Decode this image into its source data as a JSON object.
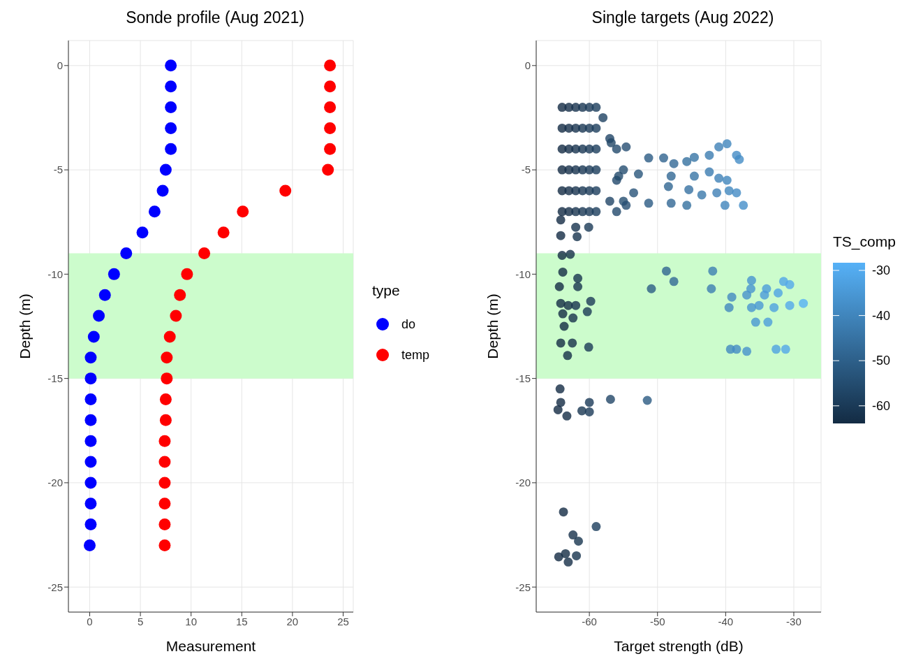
{
  "chart_data": [
    {
      "type": "scatter",
      "title": "Sonde profile (Aug 2021)",
      "xlabel": "Measurement",
      "ylabel": "Depth (m)",
      "legend_title": "type",
      "legend": "right",
      "grid": true,
      "marker": "circle",
      "xlim": [
        -2.1,
        26
      ],
      "xticks": [
        0,
        5,
        10,
        15,
        20,
        25
      ],
      "ylim": [
        -26.2,
        1.2
      ],
      "yticks": [
        -25,
        -20,
        -15,
        -10,
        -5,
        0
      ],
      "bands": [
        {
          "axis": "y",
          "from": -15,
          "to": -9,
          "color": "#ccfccc"
        }
      ],
      "series": [
        {
          "name": "do",
          "color": "#0000ff",
          "x": [
            8.0,
            8.0,
            8.0,
            8.0,
            8.0,
            7.5,
            7.2,
            6.4,
            5.2,
            3.6,
            2.4,
            1.5,
            0.9,
            0.4,
            0.1,
            0.1,
            0.1,
            0.1,
            0.1,
            0.1,
            0.1,
            0.1,
            0.1,
            0.0
          ],
          "values": [
            0,
            -1,
            -2,
            -3,
            -4,
            -5,
            -6,
            -7,
            -8,
            -9,
            -10,
            -11,
            -12,
            -13,
            -14,
            -15,
            -16,
            -17,
            -18,
            -19,
            -20,
            -21,
            -22,
            -23
          ]
        },
        {
          "name": "temp",
          "color": "#ff0000",
          "x": [
            23.7,
            23.7,
            23.7,
            23.7,
            23.7,
            23.5,
            19.3,
            15.1,
            13.2,
            11.3,
            9.6,
            8.9,
            8.5,
            7.9,
            7.6,
            7.6,
            7.5,
            7.5,
            7.4,
            7.4,
            7.4,
            7.4,
            7.4,
            7.4
          ],
          "values": [
            0,
            -1,
            -2,
            -3,
            -4,
            -5,
            -6,
            -7,
            -8,
            -9,
            -10,
            -11,
            -12,
            -13,
            -14,
            -15,
            -16,
            -17,
            -18,
            -19,
            -20,
            -21,
            -22,
            -23
          ]
        }
      ]
    },
    {
      "type": "scatter",
      "title": "Single targets (Aug 2022)",
      "xlabel": "Target strength (dB)",
      "ylabel": "Depth (m)",
      "clabel": "TS_comp",
      "clim": [
        -63.9,
        -28.3
      ],
      "cticks": [
        -60,
        -50,
        -40,
        -30
      ],
      "grid": true,
      "marker": "circle",
      "xlim": [
        -67.8,
        -26
      ],
      "xticks": [
        -60,
        -50,
        -40,
        -30
      ],
      "ylim": [
        -26.2,
        1.2
      ],
      "yticks": [
        -25,
        -20,
        -15,
        -10,
        -5,
        0
      ],
      "bands": [
        {
          "axis": "y",
          "from": -15,
          "to": -9,
          "color": "#ccfccc"
        }
      ],
      "series": [
        {
          "x": [
            -64,
            -63,
            -62,
            -61,
            -60,
            -59,
            -64,
            -63,
            -62,
            -61,
            -60,
            -59,
            -64,
            -63,
            -62,
            -61,
            -60,
            -59,
            -64,
            -63,
            -62,
            -61,
            -60,
            -59,
            -64,
            -63,
            -62,
            -61,
            -60,
            -59,
            -64,
            -63,
            -62,
            -61,
            -60,
            -59,
            -58,
            -57,
            -56,
            -55,
            -56,
            -55,
            -57,
            -56,
            -51.3,
            -49.1,
            -47.6,
            -45.7,
            -44.6,
            -42.4,
            -41.0,
            -39.8,
            -38.4,
            -38.0,
            -48.0,
            -44.6,
            -42.4,
            -41.0,
            -39.8,
            -48.4,
            -45.4,
            -43.5,
            -41.3,
            -39.5,
            -38.4,
            -51.3,
            -48.0,
            -45.7,
            -40.1,
            -37.4,
            -54.6,
            -56.8,
            -52.8,
            -53.5,
            -54.6,
            -55.7,
            -64.2,
            -62.0,
            -60.1,
            -64.2,
            -61.8,
            -64.0,
            -62.8,
            -63.9,
            -64.4,
            -61.7,
            -61.7,
            -64.2,
            -63.1,
            -62.0,
            -59.8,
            -60.3,
            -63.9,
            -62.4,
            -63.7,
            -64.2,
            -62.5,
            -60.1,
            -63.2,
            -50.9,
            -48.7,
            -47.6,
            -41.9,
            -42.1,
            -36.2,
            -36.3,
            -34.0,
            -31.5,
            -30.6,
            -32.3,
            -39.1,
            -36.9,
            -34.3,
            -39.5,
            -36.2,
            -35.1,
            -32.9,
            -30.6,
            -28.6,
            -35.6,
            -33.8,
            -39.3,
            -38.4,
            -36.9,
            -32.6,
            -31.2,
            -64.3,
            -64.2,
            -64.6,
            -63.3,
            -61.1,
            -60.0,
            -60.0,
            -56.9,
            -51.5,
            -63.8,
            -59.0,
            -62.4,
            -61.6,
            -64.5,
            -63.5,
            -63.1,
            -61.9
          ],
          "values": [
            -2,
            -2,
            -2,
            -2,
            -2,
            -2,
            -3,
            -3,
            -3,
            -3,
            -3,
            -3,
            -4,
            -4,
            -4,
            -4,
            -4,
            -4,
            -5,
            -5,
            -5,
            -5,
            -5,
            -5,
            -6,
            -6,
            -6,
            -6,
            -6,
            -6,
            -7,
            -7,
            -7,
            -7,
            -7,
            -7,
            -2.5,
            -3.5,
            -4,
            -5,
            -5.5,
            -6.5,
            -6.5,
            -7,
            -4.43,
            -4.43,
            -4.7,
            -4.6,
            -4.4,
            -4.3,
            -3.9,
            -3.75,
            -4.3,
            -4.5,
            -5.3,
            -5.3,
            -5.1,
            -5.4,
            -5.5,
            -5.8,
            -5.95,
            -6.2,
            -6.1,
            -6.0,
            -6.1,
            -6.6,
            -6.6,
            -6.7,
            -6.7,
            -6.7,
            -3.9,
            -3.7,
            -5.2,
            -6.1,
            -6.7,
            -5.3,
            -7.4,
            -7.75,
            -7.75,
            -8.15,
            -8.2,
            -9.1,
            -9.05,
            -9.9,
            -10.6,
            -10.2,
            -10.6,
            -11.4,
            -11.5,
            -11.5,
            -11.3,
            -11.8,
            -11.9,
            -12.1,
            -12.5,
            -13.3,
            -13.3,
            -13.5,
            -13.9,
            -10.7,
            -9.85,
            -10.35,
            -9.85,
            -10.7,
            -10.3,
            -10.7,
            -10.7,
            -10.35,
            -10.5,
            -10.9,
            -11.1,
            -11.0,
            -11.0,
            -11.6,
            -11.6,
            -11.5,
            -11.6,
            -11.5,
            -11.4,
            -12.3,
            -12.3,
            -13.6,
            -13.6,
            -13.7,
            -13.6,
            -13.6,
            -15.5,
            -16.15,
            -16.5,
            -16.8,
            -16.55,
            -16.15,
            -16.6,
            -16.0,
            -16.05,
            -21.4,
            -22.1,
            -22.5,
            -22.8,
            -23.55,
            -23.4,
            -23.8,
            -23.5
          ],
          "cvalues": [
            -64,
            -63,
            -62,
            -61,
            -60,
            -59,
            -64,
            -63,
            -62,
            -61,
            -60,
            -59,
            -64,
            -63,
            -62,
            -61,
            -60,
            -59,
            -64,
            -63,
            -62,
            -61,
            -60,
            -59,
            -64,
            -63,
            -62,
            -61,
            -60,
            -59,
            -64,
            -63,
            -62,
            -61,
            -60,
            -59,
            -58,
            -57,
            -56,
            -55,
            -56,
            -55,
            -57,
            -56,
            -51.3,
            -49.1,
            -47.6,
            -45.7,
            -44.6,
            -42.4,
            -41.0,
            -39.8,
            -38.4,
            -38.0,
            -48.0,
            -44.6,
            -42.4,
            -41.0,
            -39.8,
            -48.4,
            -45.4,
            -43.5,
            -41.3,
            -39.5,
            -38.4,
            -51.3,
            -48.0,
            -45.7,
            -40.1,
            -37.4,
            -54.6,
            -56.8,
            -52.8,
            -53.5,
            -54.6,
            -55.7,
            -64.2,
            -62.0,
            -60.1,
            -64.2,
            -61.8,
            -64.0,
            -62.8,
            -63.9,
            -64.4,
            -61.7,
            -61.7,
            -64.2,
            -63.1,
            -62.0,
            -59.8,
            -60.3,
            -63.9,
            -62.4,
            -63.7,
            -64.2,
            -62.5,
            -60.1,
            -63.2,
            -50.9,
            -48.7,
            -47.6,
            -41.9,
            -42.1,
            -36.2,
            -36.3,
            -34.0,
            -31.5,
            -30.6,
            -32.3,
            -39.1,
            -36.9,
            -34.3,
            -39.5,
            -36.2,
            -35.1,
            -32.9,
            -30.6,
            -28.6,
            -35.6,
            -33.8,
            -39.3,
            -38.4,
            -36.9,
            -32.6,
            -31.2,
            -64.3,
            -64.2,
            -64.6,
            -63.3,
            -61.1,
            -60.0,
            -60.0,
            -56.9,
            -51.5,
            -63.8,
            -59.0,
            -62.4,
            -61.6,
            -64.5,
            -63.5,
            -63.1,
            -61.9
          ]
        }
      ]
    }
  ]
}
